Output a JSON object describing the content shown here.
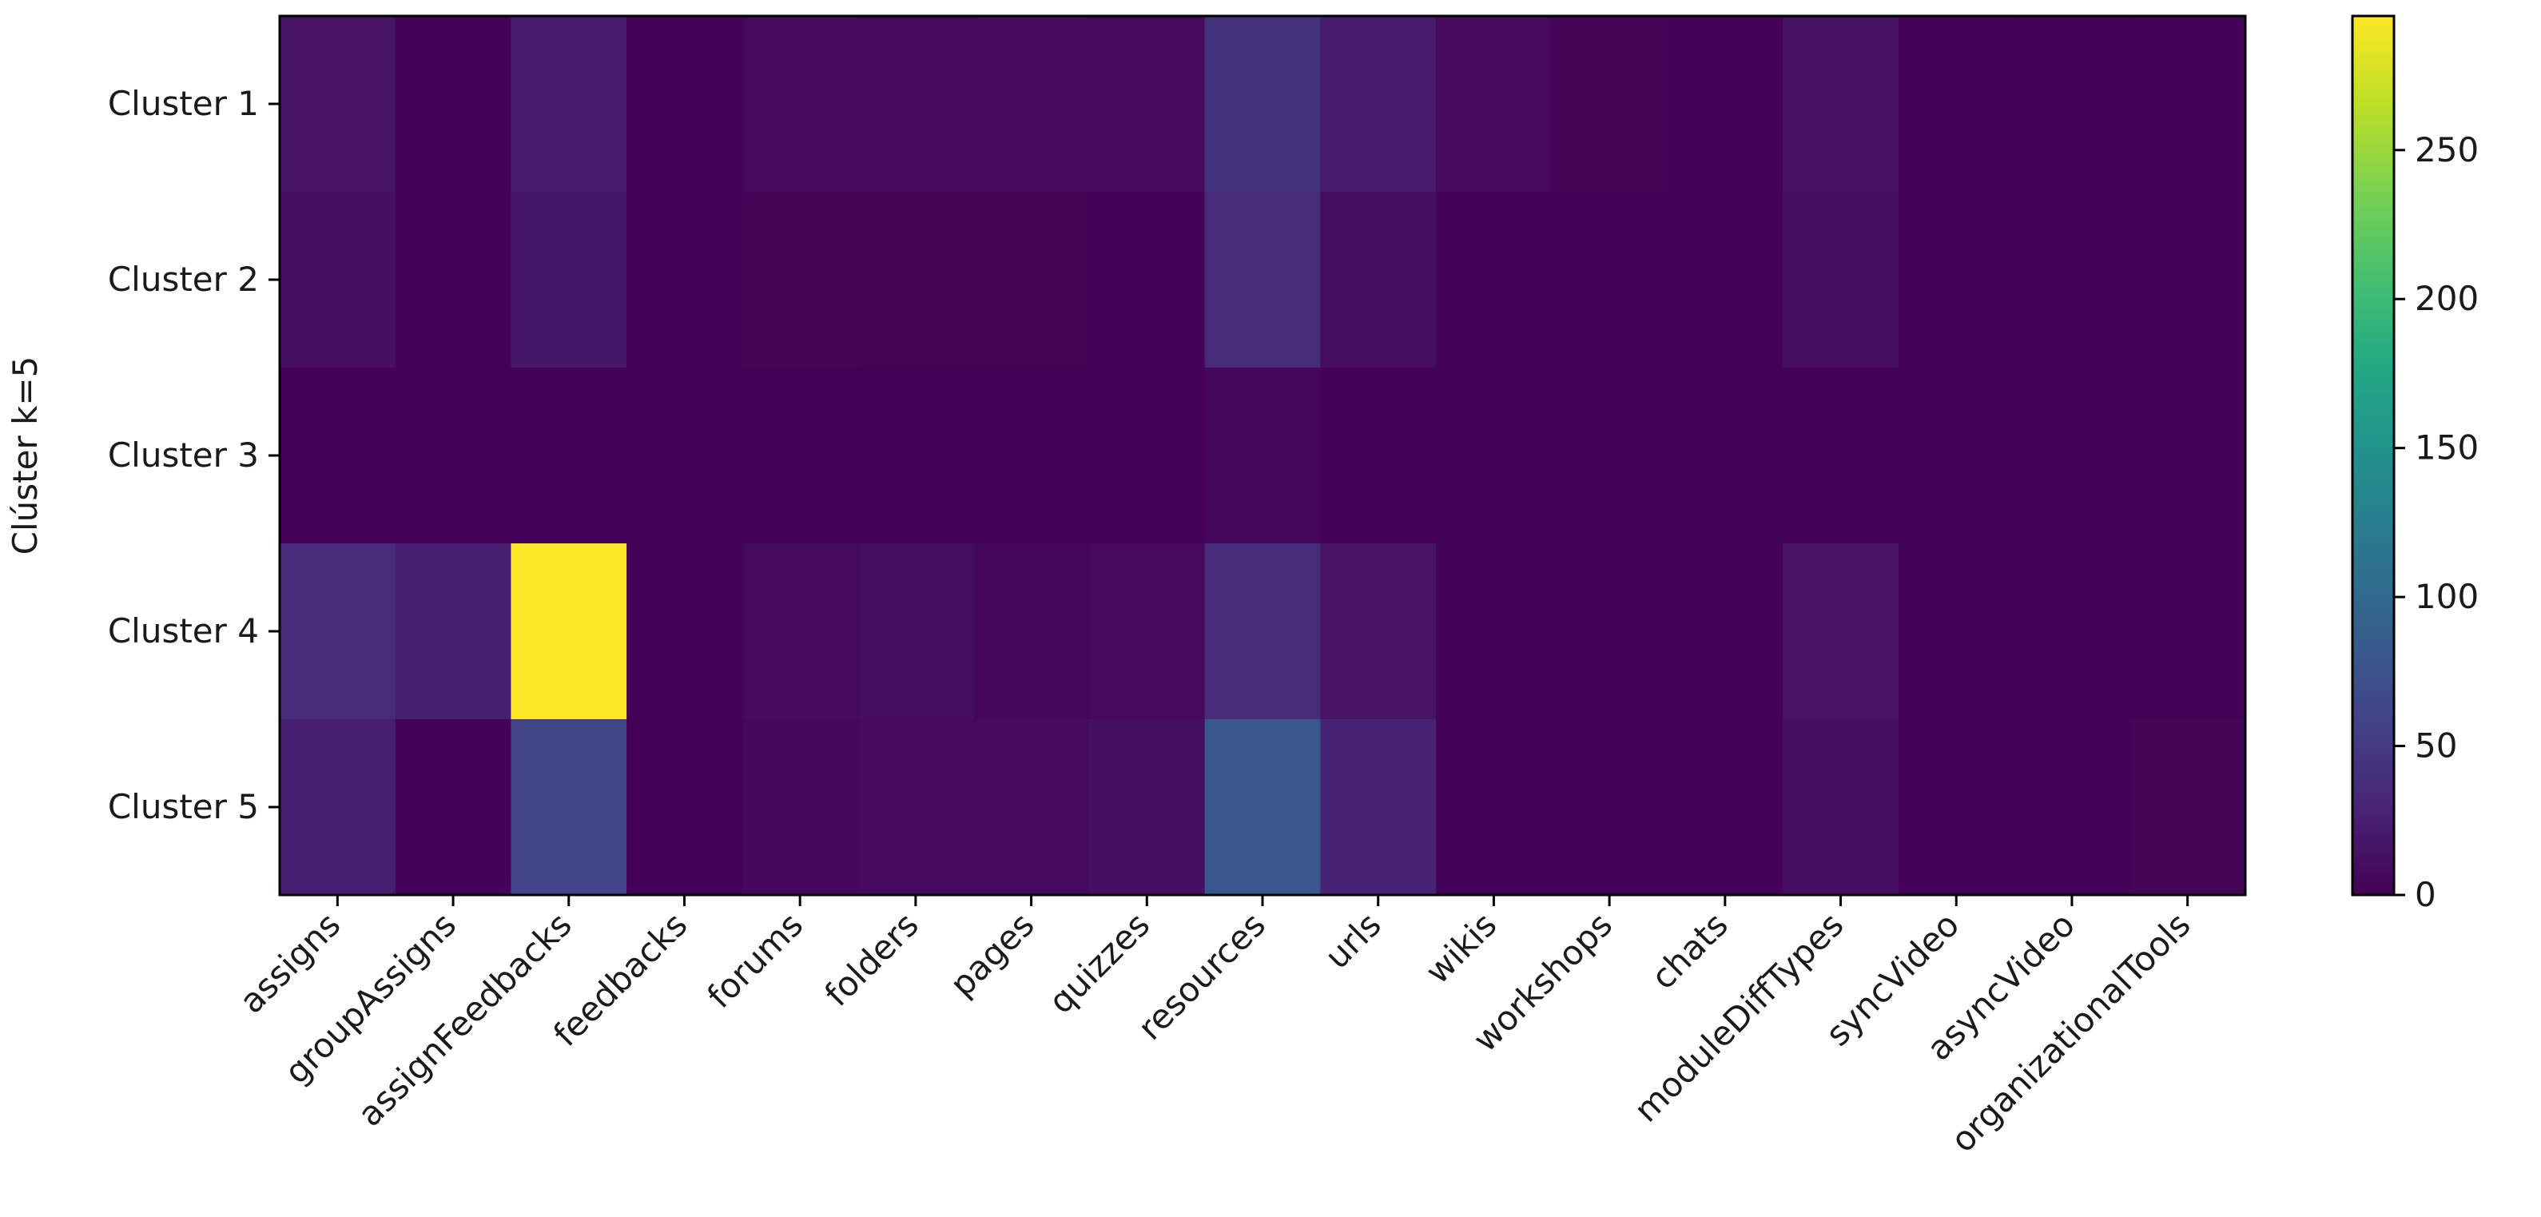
{
  "chart_data": {
    "type": "heatmap",
    "title": "",
    "xlabel": "",
    "ylabel": "Clúster k=5",
    "rows": [
      "Cluster 1",
      "Cluster 2",
      "Cluster 3",
      "Cluster 4",
      "Cluster 5"
    ],
    "columns": [
      "assigns",
      "groupAssigns",
      "assignFeedbacks",
      "feedbacks",
      "forums",
      "folders",
      "pages",
      "quizzes",
      "resources",
      "urls",
      "wikis",
      "workshops",
      "chats",
      "moduleDiffTypes",
      "syncVideo",
      "asyncVideo",
      "organizationalTools"
    ],
    "values": [
      [
        15,
        2,
        22,
        2,
        8,
        6,
        8,
        6,
        42,
        22,
        8,
        3,
        2,
        14,
        2,
        2,
        2
      ],
      [
        12,
        2,
        18,
        2,
        4,
        3,
        3,
        2,
        35,
        10,
        2,
        2,
        2,
        12,
        2,
        2,
        2
      ],
      [
        2,
        2,
        2,
        2,
        2,
        2,
        2,
        2,
        5,
        2,
        2,
        2,
        2,
        2,
        2,
        2,
        2
      ],
      [
        35,
        25,
        295,
        2,
        8,
        10,
        5,
        6,
        35,
        15,
        2,
        2,
        2,
        15,
        2,
        2,
        2
      ],
      [
        25,
        2,
        60,
        2,
        5,
        8,
        8,
        12,
        80,
        28,
        2,
        2,
        2,
        12,
        2,
        2,
        4
      ]
    ],
    "colormap": "viridis",
    "colorbar": {
      "vmin": 0,
      "vmax": 295,
      "ticks": [
        0,
        50,
        100,
        150,
        200,
        250
      ]
    },
    "grid": false,
    "legend": "colorbar-right"
  }
}
